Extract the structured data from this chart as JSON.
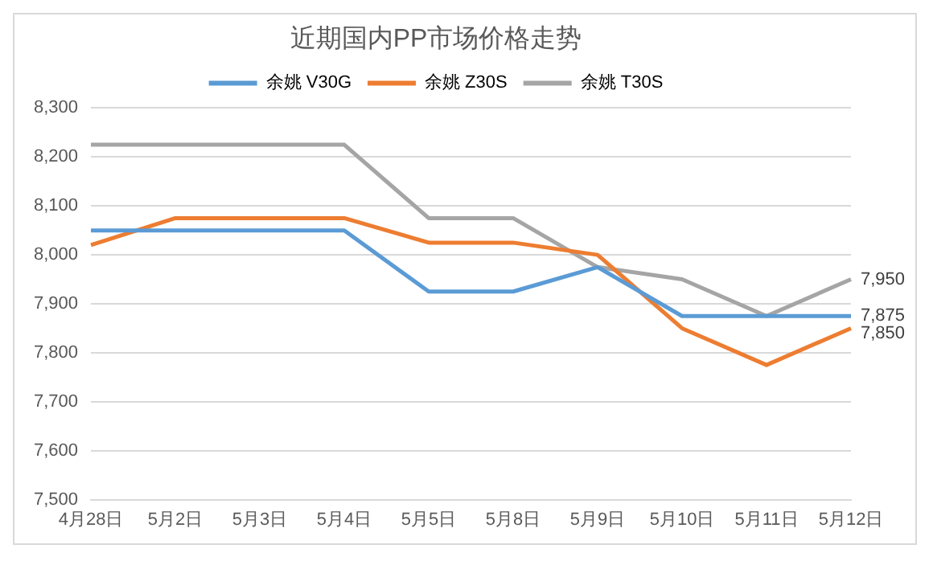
{
  "chart_data": {
    "type": "line",
    "title": "近期国内PP市场价格走势",
    "categories": [
      "4月28日",
      "5月2日",
      "5月3日",
      "5月4日",
      "5月5日",
      "5月8日",
      "5月9日",
      "5月10日",
      "5月11日",
      "5月12日"
    ],
    "series": [
      {
        "name": "余姚 V30G",
        "color": "#5b9bd5",
        "values": [
          8050,
          8050,
          8050,
          8050,
          7925,
          7925,
          7975,
          7875,
          7875,
          7875
        ],
        "value_labels": [
          null,
          null,
          null,
          null,
          null,
          null,
          null,
          null,
          null,
          "7,875"
        ]
      },
      {
        "name": "余姚 Z30S",
        "color": "#ed7d31",
        "values": [
          8020,
          8075,
          8075,
          8075,
          8025,
          8025,
          8000,
          7850,
          7775,
          7850
        ],
        "value_labels": [
          null,
          null,
          null,
          null,
          null,
          null,
          null,
          null,
          null,
          "7,850"
        ]
      },
      {
        "name": "余姚 T30S",
        "color": "#a5a5a5",
        "values": [
          8225,
          8225,
          8225,
          8225,
          8075,
          8075,
          7975,
          7950,
          7875,
          7950
        ],
        "value_labels": [
          null,
          null,
          null,
          null,
          null,
          null,
          null,
          null,
          null,
          "7,950"
        ]
      }
    ],
    "ylim": [
      7500,
      8300
    ],
    "yticks": [
      {
        "value": 7500,
        "label": "7,500"
      },
      {
        "value": 7600,
        "label": "7,600"
      },
      {
        "value": 7700,
        "label": "7,700"
      },
      {
        "value": 7800,
        "label": "7,800"
      },
      {
        "value": 7900,
        "label": "7,900"
      },
      {
        "value": 8000,
        "label": "8,000"
      },
      {
        "value": 8100,
        "label": "8,100"
      },
      {
        "value": 8200,
        "label": "8,200"
      },
      {
        "value": 8300,
        "label": "8,300"
      }
    ],
    "grid": "y",
    "legend": "top",
    "marker": "none",
    "line_style": "solid"
  }
}
